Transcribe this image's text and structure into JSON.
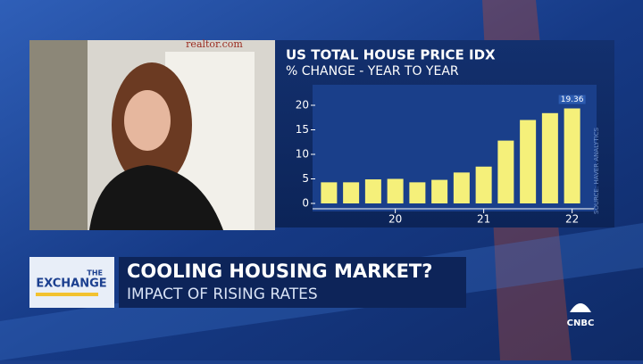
{
  "video": {
    "sign": "realtor.com"
  },
  "chart_data": {
    "type": "bar",
    "title": "US TOTAL HOUSE PRICE IDX",
    "subtitle": "% CHANGE - YEAR TO YEAR",
    "source": "SOURCE: HAVER ANALYTICS",
    "categories": [
      null,
      null,
      null,
      "20",
      null,
      null,
      null,
      "21",
      null,
      null,
      null,
      "22"
    ],
    "values": [
      4.3,
      4.3,
      4.9,
      5.0,
      4.3,
      4.8,
      6.3,
      7.5,
      12.8,
      17.0,
      18.4,
      19.36
    ],
    "value_labels": [
      null,
      null,
      null,
      null,
      null,
      null,
      null,
      null,
      null,
      null,
      null,
      "19.36"
    ],
    "color": "#f5f07a",
    "ylim": [
      0,
      20
    ],
    "yticks": [
      0,
      5,
      10,
      15,
      20
    ]
  },
  "lower_third": {
    "show_top": "THE",
    "show_name": "EXCHANGE",
    "headline": "COOLING HOUSING MARKET?",
    "subhead": "IMPACT OF RISING RATES"
  },
  "network": "CNBC"
}
